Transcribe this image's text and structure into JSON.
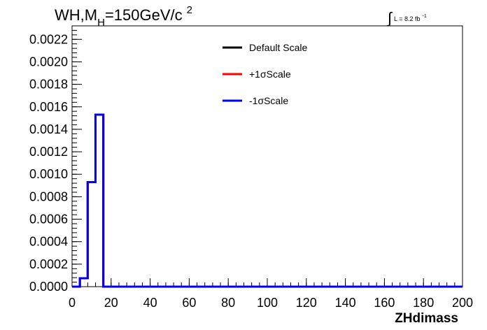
{
  "title": {
    "main": "WH,M",
    "sub": "H",
    "rest": "=150GeV/c",
    "sup": "2"
  },
  "lumi": {
    "integral": "∫",
    "text": "L = 8.2 fb",
    "sup": "-1"
  },
  "chart_data": {
    "type": "line",
    "xlabel": "ZHdimass",
    "ylabel": "",
    "xlim": [
      0,
      200
    ],
    "ylim": [
      0,
      0.00232
    ],
    "x_ticks": [
      "0",
      "20",
      "40",
      "60",
      "80",
      "100",
      "120",
      "140",
      "160",
      "180",
      "200"
    ],
    "y_ticks": [
      "0.0000",
      "0.0002",
      "0.0004",
      "0.0006",
      "0.0008",
      "0.0010",
      "0.0012",
      "0.0014",
      "0.0016",
      "0.0018",
      "0.0020",
      "0.0022"
    ],
    "bin_width": 4,
    "series": [
      {
        "name": "Default Scale",
        "color": "#000000",
        "values": [
          0.0,
          7.5e-05,
          0.00093,
          0.00153,
          0.0
        ]
      },
      {
        "name": "+1σScale",
        "color": "#ff0000",
        "values": [
          0.0,
          7.5e-05,
          0.00093,
          0.00153,
          0.0
        ]
      },
      {
        "name": "-1σScale",
        "color": "#0000ee",
        "values": [
          0.0,
          7.5e-05,
          0.00093,
          0.00153,
          0.0
        ]
      }
    ],
    "legend_position": "top-center",
    "grid": false
  }
}
